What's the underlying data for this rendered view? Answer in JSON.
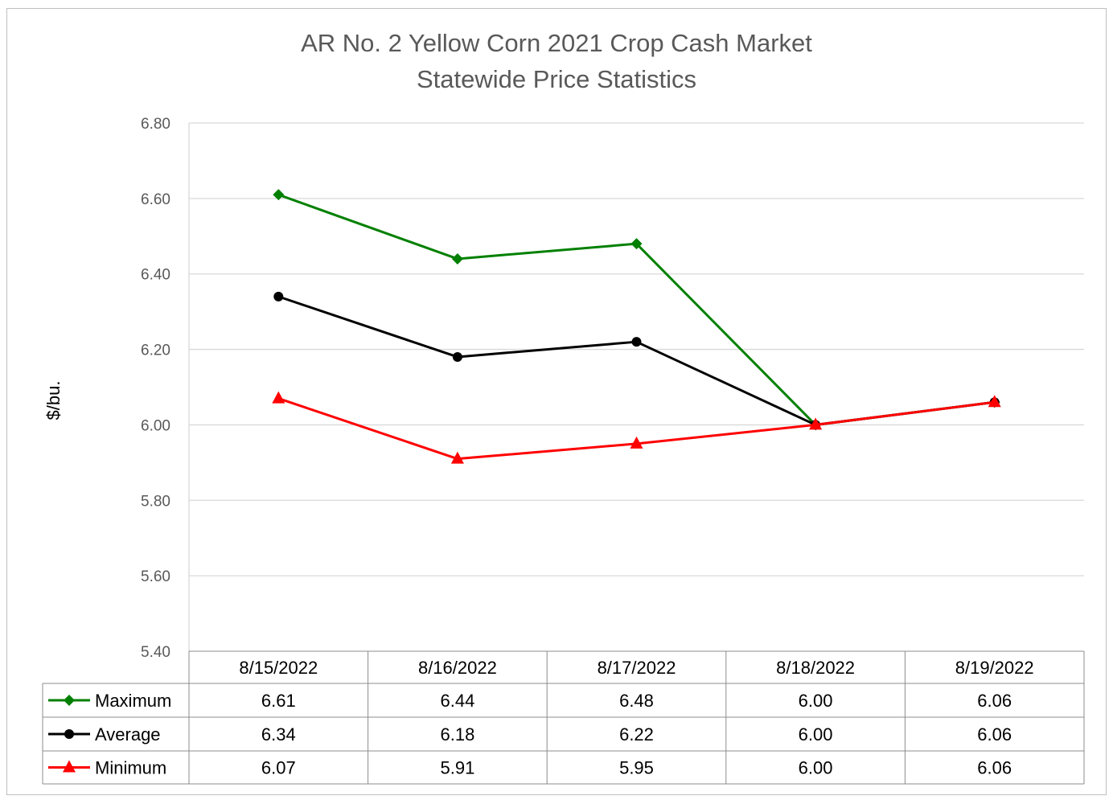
{
  "chart_data": {
    "type": "line",
    "title": "AR No. 2 Yellow Corn 2021 Crop Cash Market",
    "subtitle": "Statewide Price Statistics",
    "ylabel": "$/bu.",
    "xlabel": "",
    "ylim": [
      5.4,
      6.8
    ],
    "yticks": [
      "5.40",
      "5.60",
      "5.80",
      "6.00",
      "6.20",
      "6.40",
      "6.60",
      "6.80"
    ],
    "grid": true,
    "legend": "data-table",
    "categories": [
      "8/15/2022",
      "8/16/2022",
      "8/17/2022",
      "8/18/2022",
      "8/19/2022"
    ],
    "series": [
      {
        "name": "Maximum",
        "values": [
          6.61,
          6.44,
          6.48,
          6.0,
          6.06
        ],
        "labels": [
          "6.61",
          "6.44",
          "6.48",
          "6.00",
          "6.06"
        ],
        "color": "#008000",
        "marker": "diamond"
      },
      {
        "name": "Average",
        "values": [
          6.34,
          6.18,
          6.22,
          6.0,
          6.06
        ],
        "labels": [
          "6.34",
          "6.18",
          "6.22",
          "6.00",
          "6.06"
        ],
        "color": "#000000",
        "marker": "circle"
      },
      {
        "name": "Minimum",
        "values": [
          6.07,
          5.91,
          5.95,
          6.0,
          6.06
        ],
        "labels": [
          "6.07",
          "5.91",
          "5.95",
          "6.00",
          "6.06"
        ],
        "color": "#ff0000",
        "marker": "triangle"
      }
    ]
  }
}
